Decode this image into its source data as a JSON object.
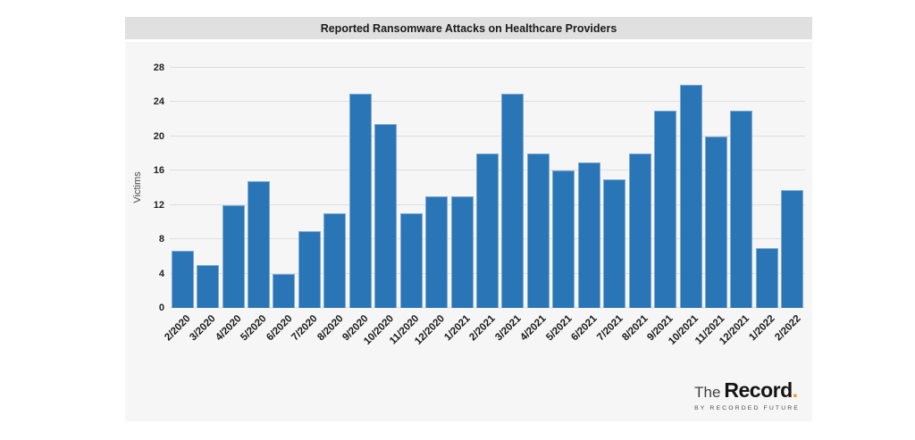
{
  "chart_data": {
    "type": "bar",
    "title": "Reported Ransomware Attacks on Healthcare Providers",
    "xlabel": "",
    "ylabel": "Victims",
    "ylim": [
      0,
      28
    ],
    "yticks": [
      0,
      4,
      8,
      12,
      16,
      20,
      24,
      28
    ],
    "grid": true,
    "legend": false,
    "bar_color": "#2a75b6",
    "bar_edge_color": "#7fa9d2",
    "categories": [
      "2/2020",
      "3/2020",
      "4/2020",
      "5/2020",
      "6/2020",
      "7/2020",
      "8/2020",
      "9/2020",
      "10/2020",
      "11/2020",
      "12/2020",
      "1/2021",
      "2/2021",
      "3/2021",
      "4/2021",
      "5/2021",
      "6/2021",
      "7/2021",
      "8/2021",
      "9/2021",
      "10/2021",
      "11/2021",
      "12/2021",
      "1/2022",
      "2/2022"
    ],
    "values": [
      6.7,
      5,
      12,
      14.8,
      4,
      9,
      11,
      25,
      21.4,
      11,
      13,
      13,
      18,
      25,
      18,
      16,
      17,
      15,
      18,
      23,
      26,
      20,
      23,
      7,
      13.7
    ]
  },
  "branding": {
    "prefix": "The",
    "name": "Record",
    "period": ".",
    "tagline": "BY RECORDED FUTURE",
    "accent_color": "#f7941d"
  },
  "colors": {
    "title_strip_bg": "#e0e0e0",
    "plot_bg": "#f6f6f6",
    "gridline": "#dedede",
    "page_bg": "#ffffff"
  }
}
